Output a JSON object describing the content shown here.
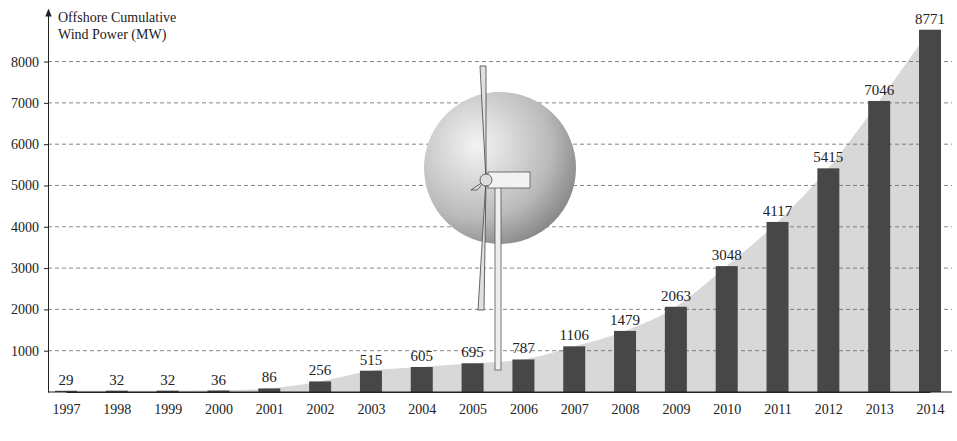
{
  "chart_data": {
    "type": "bar",
    "y_label": "Offshore Cumulative Wind Power (MW)",
    "categories": [
      "1997",
      "1998",
      "1999",
      "2000",
      "2001",
      "2002",
      "2003",
      "2004",
      "2005",
      "2006",
      "2007",
      "2008",
      "2009",
      "2010",
      "2011",
      "2012",
      "2013",
      "2014"
    ],
    "values": [
      29,
      32,
      32,
      36,
      86,
      256,
      515,
      605,
      695,
      787,
      1106,
      1479,
      2063,
      3048,
      4117,
      5415,
      7046,
      8771
    ],
    "color": "#474747",
    "ylim": [
      0,
      9200
    ],
    "yticks": [
      1000,
      2000,
      3000,
      4000,
      5000,
      6000,
      7000,
      8000
    ],
    "grid": true,
    "data_labels": true
  }
}
